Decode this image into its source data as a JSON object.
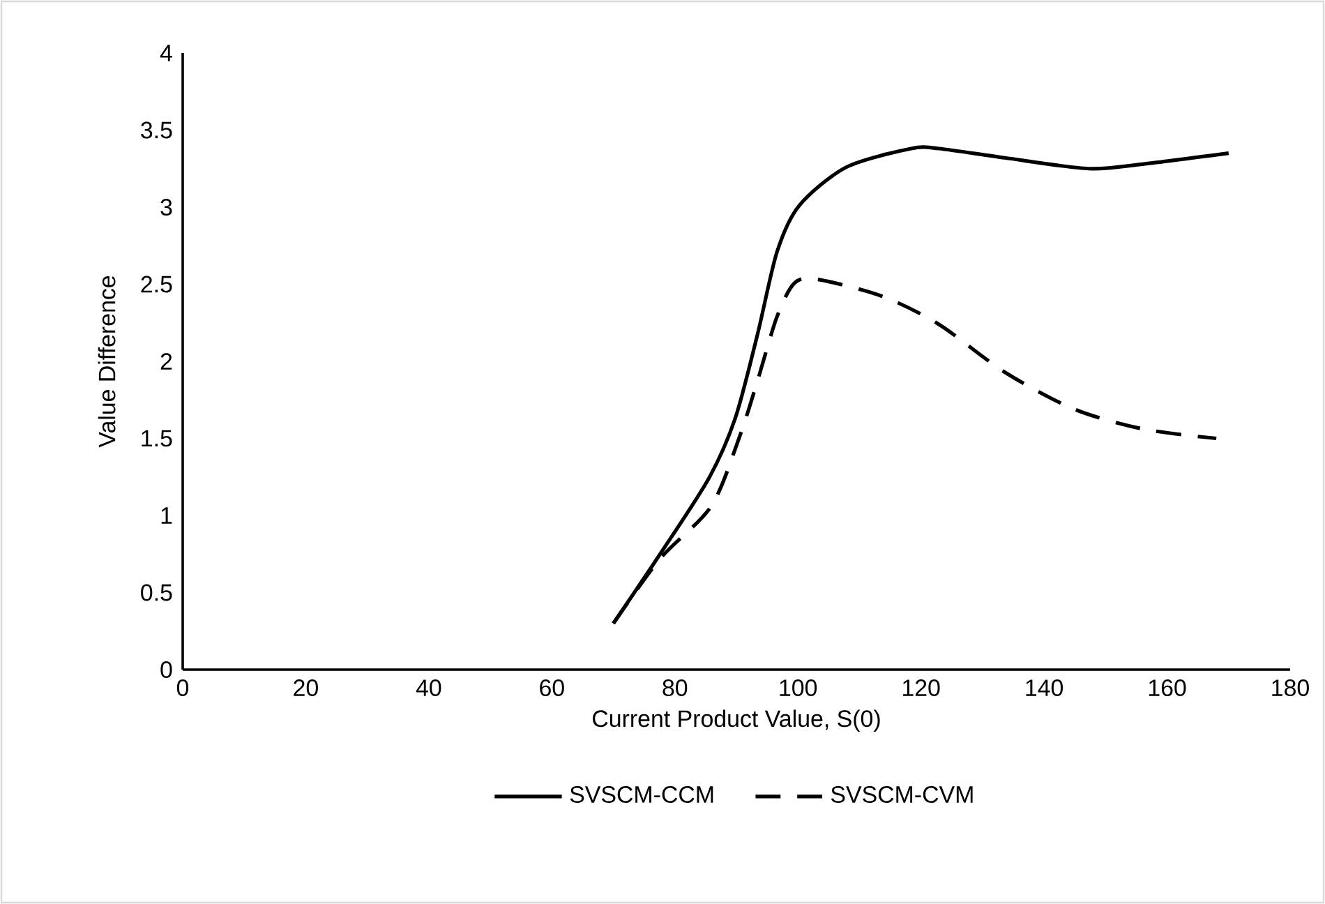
{
  "chart_data": {
    "type": "line",
    "xlabel": "Current Product Value, S(0)",
    "ylabel": "Value Difference",
    "xlim": [
      0,
      180
    ],
    "xticks": [
      0,
      20,
      40,
      60,
      80,
      100,
      120,
      140,
      160,
      180
    ],
    "ylim": [
      0,
      4
    ],
    "yticks": [
      0,
      0.5,
      1,
      1.5,
      2,
      2.5,
      3,
      3.5,
      4
    ],
    "legend": "bottom",
    "marker": "none",
    "series": [
      {
        "name": "SVSCM-CCM",
        "color": "#000000",
        "line_style": "solid",
        "x": [
          70,
          77.6,
          85.5,
          89.8,
          93.4,
          96.6,
          100.2,
          107.9,
          118.4,
          122.9,
          133.6,
          147.2,
          156.2,
          170
        ],
        "values": [
          0.3,
          0.75,
          1.24,
          1.63,
          2.17,
          2.71,
          3.01,
          3.26,
          3.38,
          3.38,
          3.32,
          3.25,
          3.28,
          3.35
        ]
      },
      {
        "name": "SVSCM-CVM",
        "color": "#000000",
        "line_style": "dashed",
        "x": [
          70,
          77.6,
          85.9,
          90.5,
          93.4,
          96.6,
          99.5,
          103.4,
          113.8,
          122.9,
          133.6,
          144.9,
          156.2,
          168
        ],
        "values": [
          0.3,
          0.72,
          1.06,
          1.51,
          1.87,
          2.29,
          2.51,
          2.53,
          2.42,
          2.24,
          1.93,
          1.69,
          1.56,
          1.5
        ]
      }
    ]
  }
}
